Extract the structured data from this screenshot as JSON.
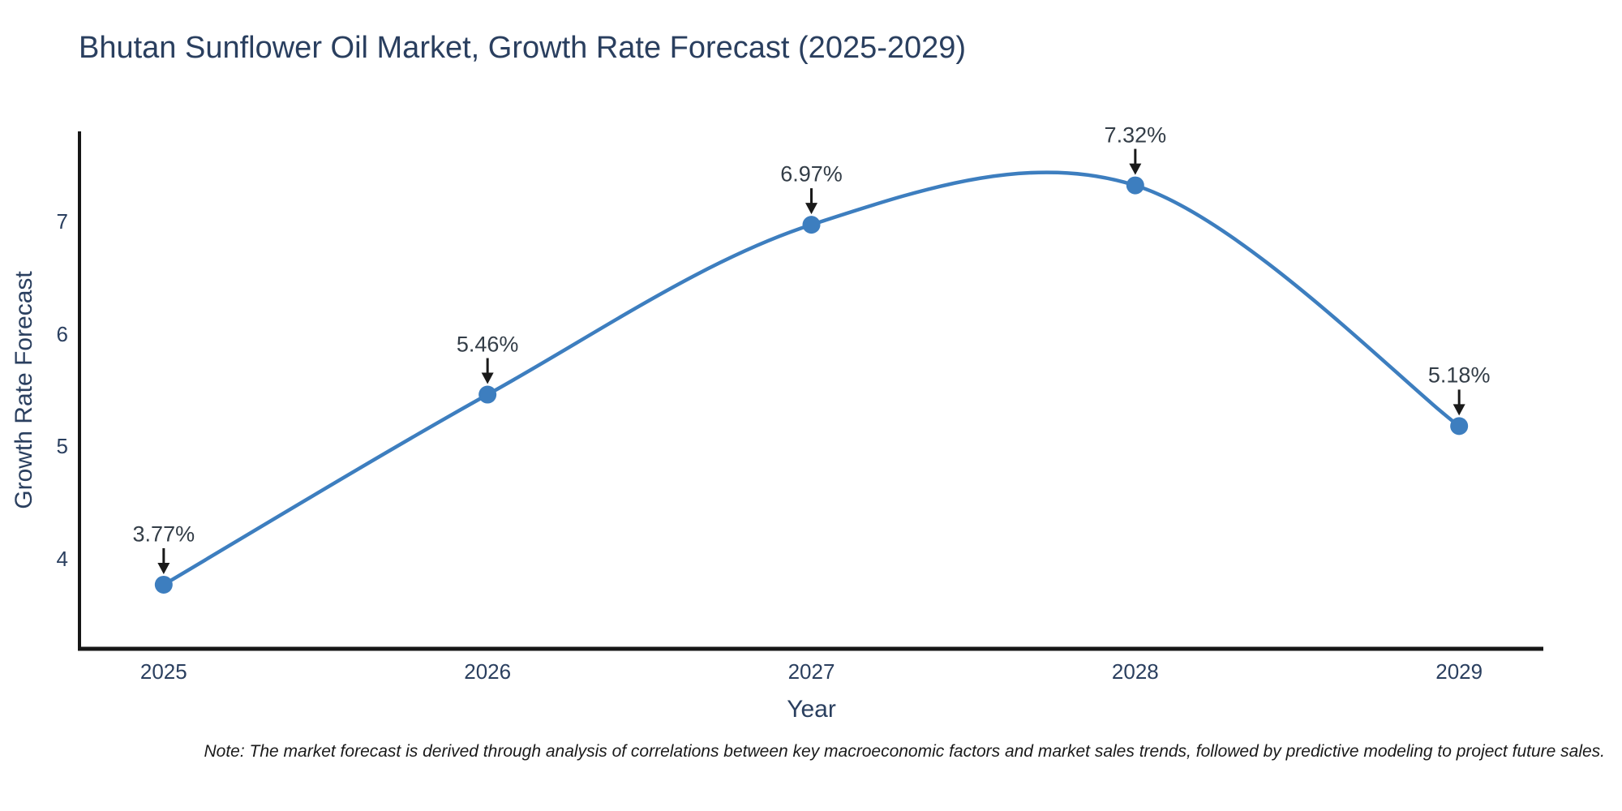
{
  "note": "Note: The market forecast is derived through analysis of correlations between key macroeconomic factors and market sales trends, followed by predictive modeling to project future sales.",
  "colors": {
    "title_text": "#2a3f5f",
    "tick_text": "#2a3f5f",
    "annotation_text": "#333d47",
    "axis_line": "#161616",
    "arrow": "#1a1a1a",
    "line": "#3D7EBF",
    "marker": "#3D7EBF",
    "background": "#ffffff"
  },
  "chart_data": {
    "type": "line",
    "line_shape": "spline",
    "title": "Bhutan Sunflower Oil Market, Growth Rate Forecast (2025-2029)",
    "xlabel": "Year",
    "ylabel": "Growth Rate Forecast",
    "series_name": "Growth Rate Forecast",
    "x": [
      2025,
      2026,
      2027,
      2028,
      2029
    ],
    "y": [
      3.77,
      5.46,
      6.97,
      7.32,
      5.18
    ],
    "point_labels": [
      "3.77%",
      "5.46%",
      "6.97%",
      "7.32%",
      "5.18%"
    ],
    "xticks": [
      "2025",
      "2026",
      "2027",
      "2028",
      "2029"
    ],
    "xtick_values": [
      2025,
      2026,
      2027,
      2028,
      2029
    ],
    "yticks": [
      "4",
      "5",
      "6",
      "7"
    ],
    "ytick_values": [
      4,
      5,
      6,
      7
    ],
    "xlim": [
      2024.74,
      2029.26
    ],
    "ylim": [
      3.2,
      7.8
    ],
    "grid": false,
    "legend": "none",
    "annotations_have_arrows": true
  }
}
